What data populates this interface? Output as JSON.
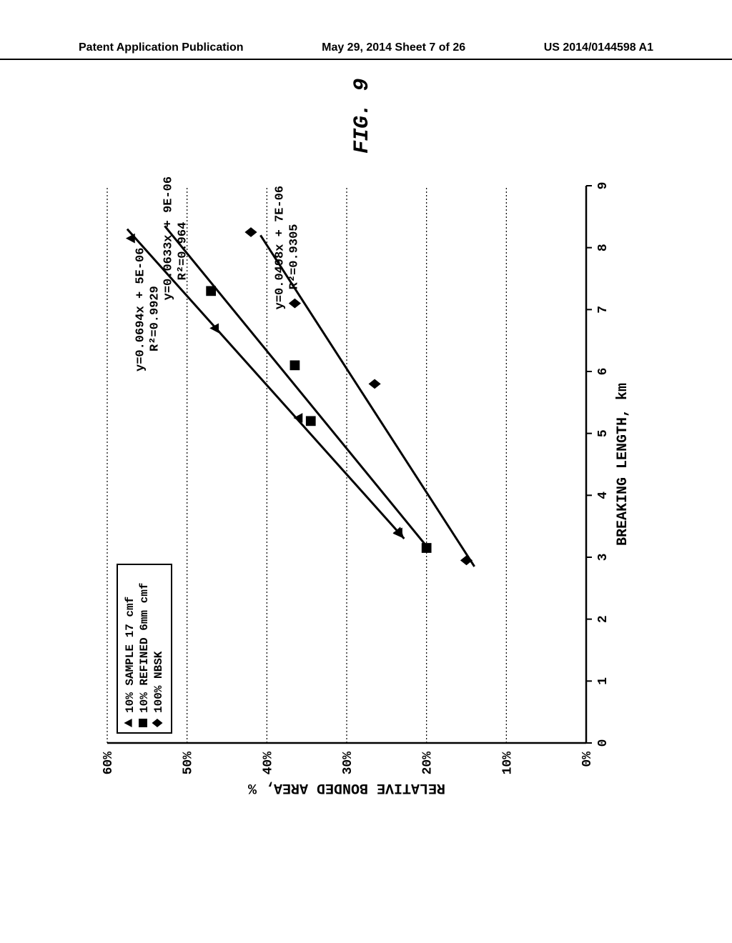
{
  "header": {
    "left": "Patent Application Publication",
    "center": "May 29, 2014  Sheet 7 of 26",
    "right": "US 2014/0144598 A1"
  },
  "figure_label": "FIG. 9",
  "chart": {
    "type": "scatter-with-trend",
    "xlabel": "BREAKING LENGTH, km",
    "ylabel": "RELATIVE BONDED AREA, %",
    "xlim": [
      0,
      9
    ],
    "ylim": [
      0,
      60
    ],
    "xtick_step": 1,
    "ytick_step": 10,
    "ytick_labels": [
      "0%",
      "10%",
      "20%",
      "30%",
      "40%",
      "50%",
      "60%"
    ],
    "grid_color": "#000000",
    "grid_dash": "2 3",
    "axis_color": "#000000",
    "background_color": "#ffffff",
    "line_width": 3,
    "marker_size": 11,
    "font_family_mono": "Courier New",
    "axis_fontsize": 20,
    "tick_fontsize": 18,
    "legend": {
      "position": "upper-left",
      "items": [
        {
          "marker": "triangle",
          "label": "10% SAMPLE 17 cmf"
        },
        {
          "marker": "square",
          "label": "10% REFINED 6mm cmf"
        },
        {
          "marker": "diamond",
          "label": "100% NBSK"
        }
      ],
      "border_color": "#000000",
      "font_size": 16
    },
    "series": [
      {
        "name": "10% SAMPLE 17 cmf",
        "marker": "triangle",
        "color": "#000000",
        "points": [
          {
            "x": 3.4,
            "y": 23.5
          },
          {
            "x": 5.25,
            "y": 36
          },
          {
            "x": 6.7,
            "y": 46.5
          },
          {
            "x": 8.15,
            "y": 57
          }
        ],
        "trend": {
          "x1": 3.3,
          "y1": 22.8,
          "x2": 8.3,
          "y2": 57.5
        },
        "equation": "y=0.0694x + 5E-06",
        "r2": "R²=0.9929",
        "eq_pos": {
          "x": 6.0,
          "y": 55.5
        }
      },
      {
        "name": "10% REFINED 6mm cmf",
        "marker": "square",
        "color": "#000000",
        "points": [
          {
            "x": 3.15,
            "y": 20
          },
          {
            "x": 5.2,
            "y": 34.5
          },
          {
            "x": 6.1,
            "y": 36.5
          },
          {
            "x": 7.3,
            "y": 47
          }
        ],
        "trend": {
          "x1": 3.1,
          "y1": 19.5,
          "x2": 8.35,
          "y2": 52.8
        },
        "equation": "y=0.0633x + 9E-06",
        "r2": "R²=0.964",
        "eq_pos": {
          "x": 7.15,
          "y": 52
        }
      },
      {
        "name": "100% NBSK",
        "marker": "diamond",
        "color": "#000000",
        "points": [
          {
            "x": 2.95,
            "y": 15
          },
          {
            "x": 5.8,
            "y": 26.5
          },
          {
            "x": 7.1,
            "y": 36.5
          },
          {
            "x": 8.25,
            "y": 42
          }
        ],
        "trend": {
          "x1": 2.85,
          "y1": 14,
          "x2": 8.2,
          "y2": 40.8
        },
        "equation": "y=0.0498x + 7E-06",
        "r2": "R²=0.9305",
        "eq_pos": {
          "x": 7.0,
          "y": 38
        }
      }
    ]
  }
}
